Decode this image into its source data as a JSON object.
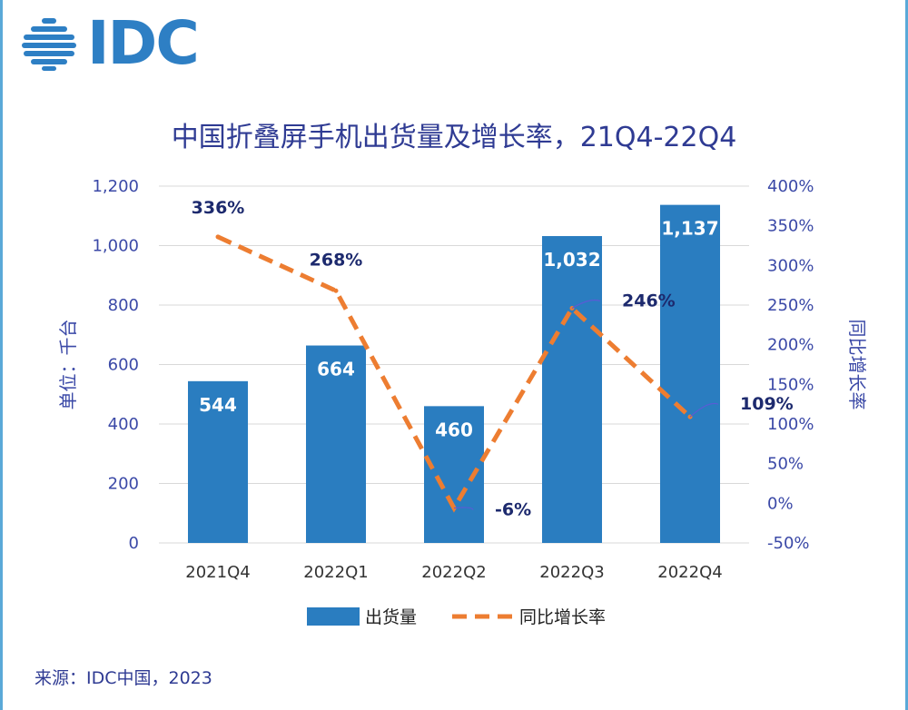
{
  "logo": {
    "text": "IDC"
  },
  "title": "中国折叠屏手机出货量及增长率，21Q4-22Q4",
  "source": "来源：IDC中国，2023",
  "colors": {
    "bar": "#2a7dc0",
    "line": "#ed7d31",
    "axis_text": "#3b49a7",
    "grid": "#d9d9d9"
  },
  "chart_data": {
    "type": "bar",
    "categories": [
      "2021Q4",
      "2022Q1",
      "2022Q2",
      "2022Q3",
      "2022Q4"
    ],
    "series": [
      {
        "name": "出货量",
        "type": "bar",
        "axis": "left",
        "values": [
          544,
          664,
          460,
          1032,
          1137
        ],
        "labels": [
          "544",
          "664",
          "460",
          "1,032",
          "1,137"
        ]
      },
      {
        "name": "同比增长率",
        "type": "line",
        "axis": "right",
        "style": "dashed",
        "values": [
          336,
          268,
          -6,
          246,
          109
        ],
        "labels": [
          "336%",
          "268%",
          "-6%",
          "246%",
          "109%"
        ]
      }
    ],
    "ylabel": "单位：千台",
    "ylabel_right": "同比增长率",
    "ylim": [
      0,
      1200
    ],
    "ylim_right": [
      -50,
      400
    ],
    "yticks": [
      "0",
      "200",
      "400",
      "600",
      "800",
      "1,000",
      "1,200"
    ],
    "yticks_right": [
      "-50%",
      "0%",
      "50%",
      "100%",
      "150%",
      "200%",
      "250%",
      "300%",
      "350%",
      "400%"
    ],
    "grid": true,
    "legend": "bottom"
  }
}
